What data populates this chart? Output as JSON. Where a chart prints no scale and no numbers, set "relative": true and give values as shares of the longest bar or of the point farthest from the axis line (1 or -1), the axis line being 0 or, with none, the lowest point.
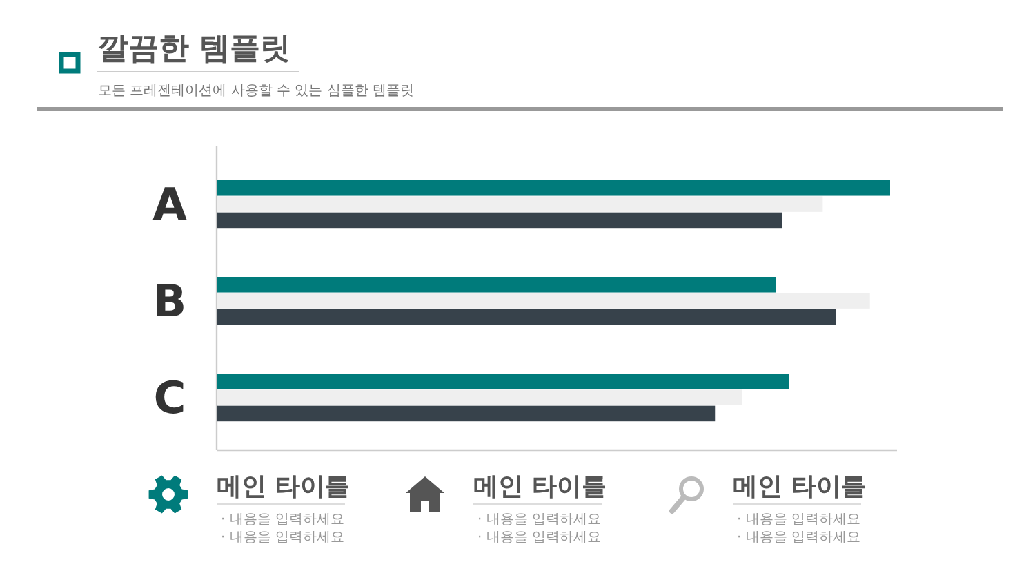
{
  "chart_data": {
    "type": "bar",
    "orientation": "horizontal",
    "relative": true,
    "title": "깔끔한 템플릿",
    "subtitle": "모든 프레젠테이션에 사용할 수 있는 심플한 템플릿",
    "categories": [
      "A",
      "B",
      "C"
    ],
    "series": [
      {
        "color": "#007b7b",
        "values": [
          1,
          0.83,
          0.85
        ]
      },
      {
        "color": "#efefef",
        "values": [
          0.9,
          0.97,
          0.78
        ]
      },
      {
        "color": "#37424b",
        "values": [
          0.84,
          0.92,
          0.74
        ]
      }
    ],
    "annotations": [
      "메인 타이틀",
      "· 내용을 입력하세요",
      "· 내용을 입력하세요",
      "메인 타이틀",
      "· 내용을 입력하세요",
      "· 내용을 입력하세요",
      "메인 타이틀",
      "· 내용을 입력하세요",
      "· 내용을 입력하세요"
    ]
  }
}
